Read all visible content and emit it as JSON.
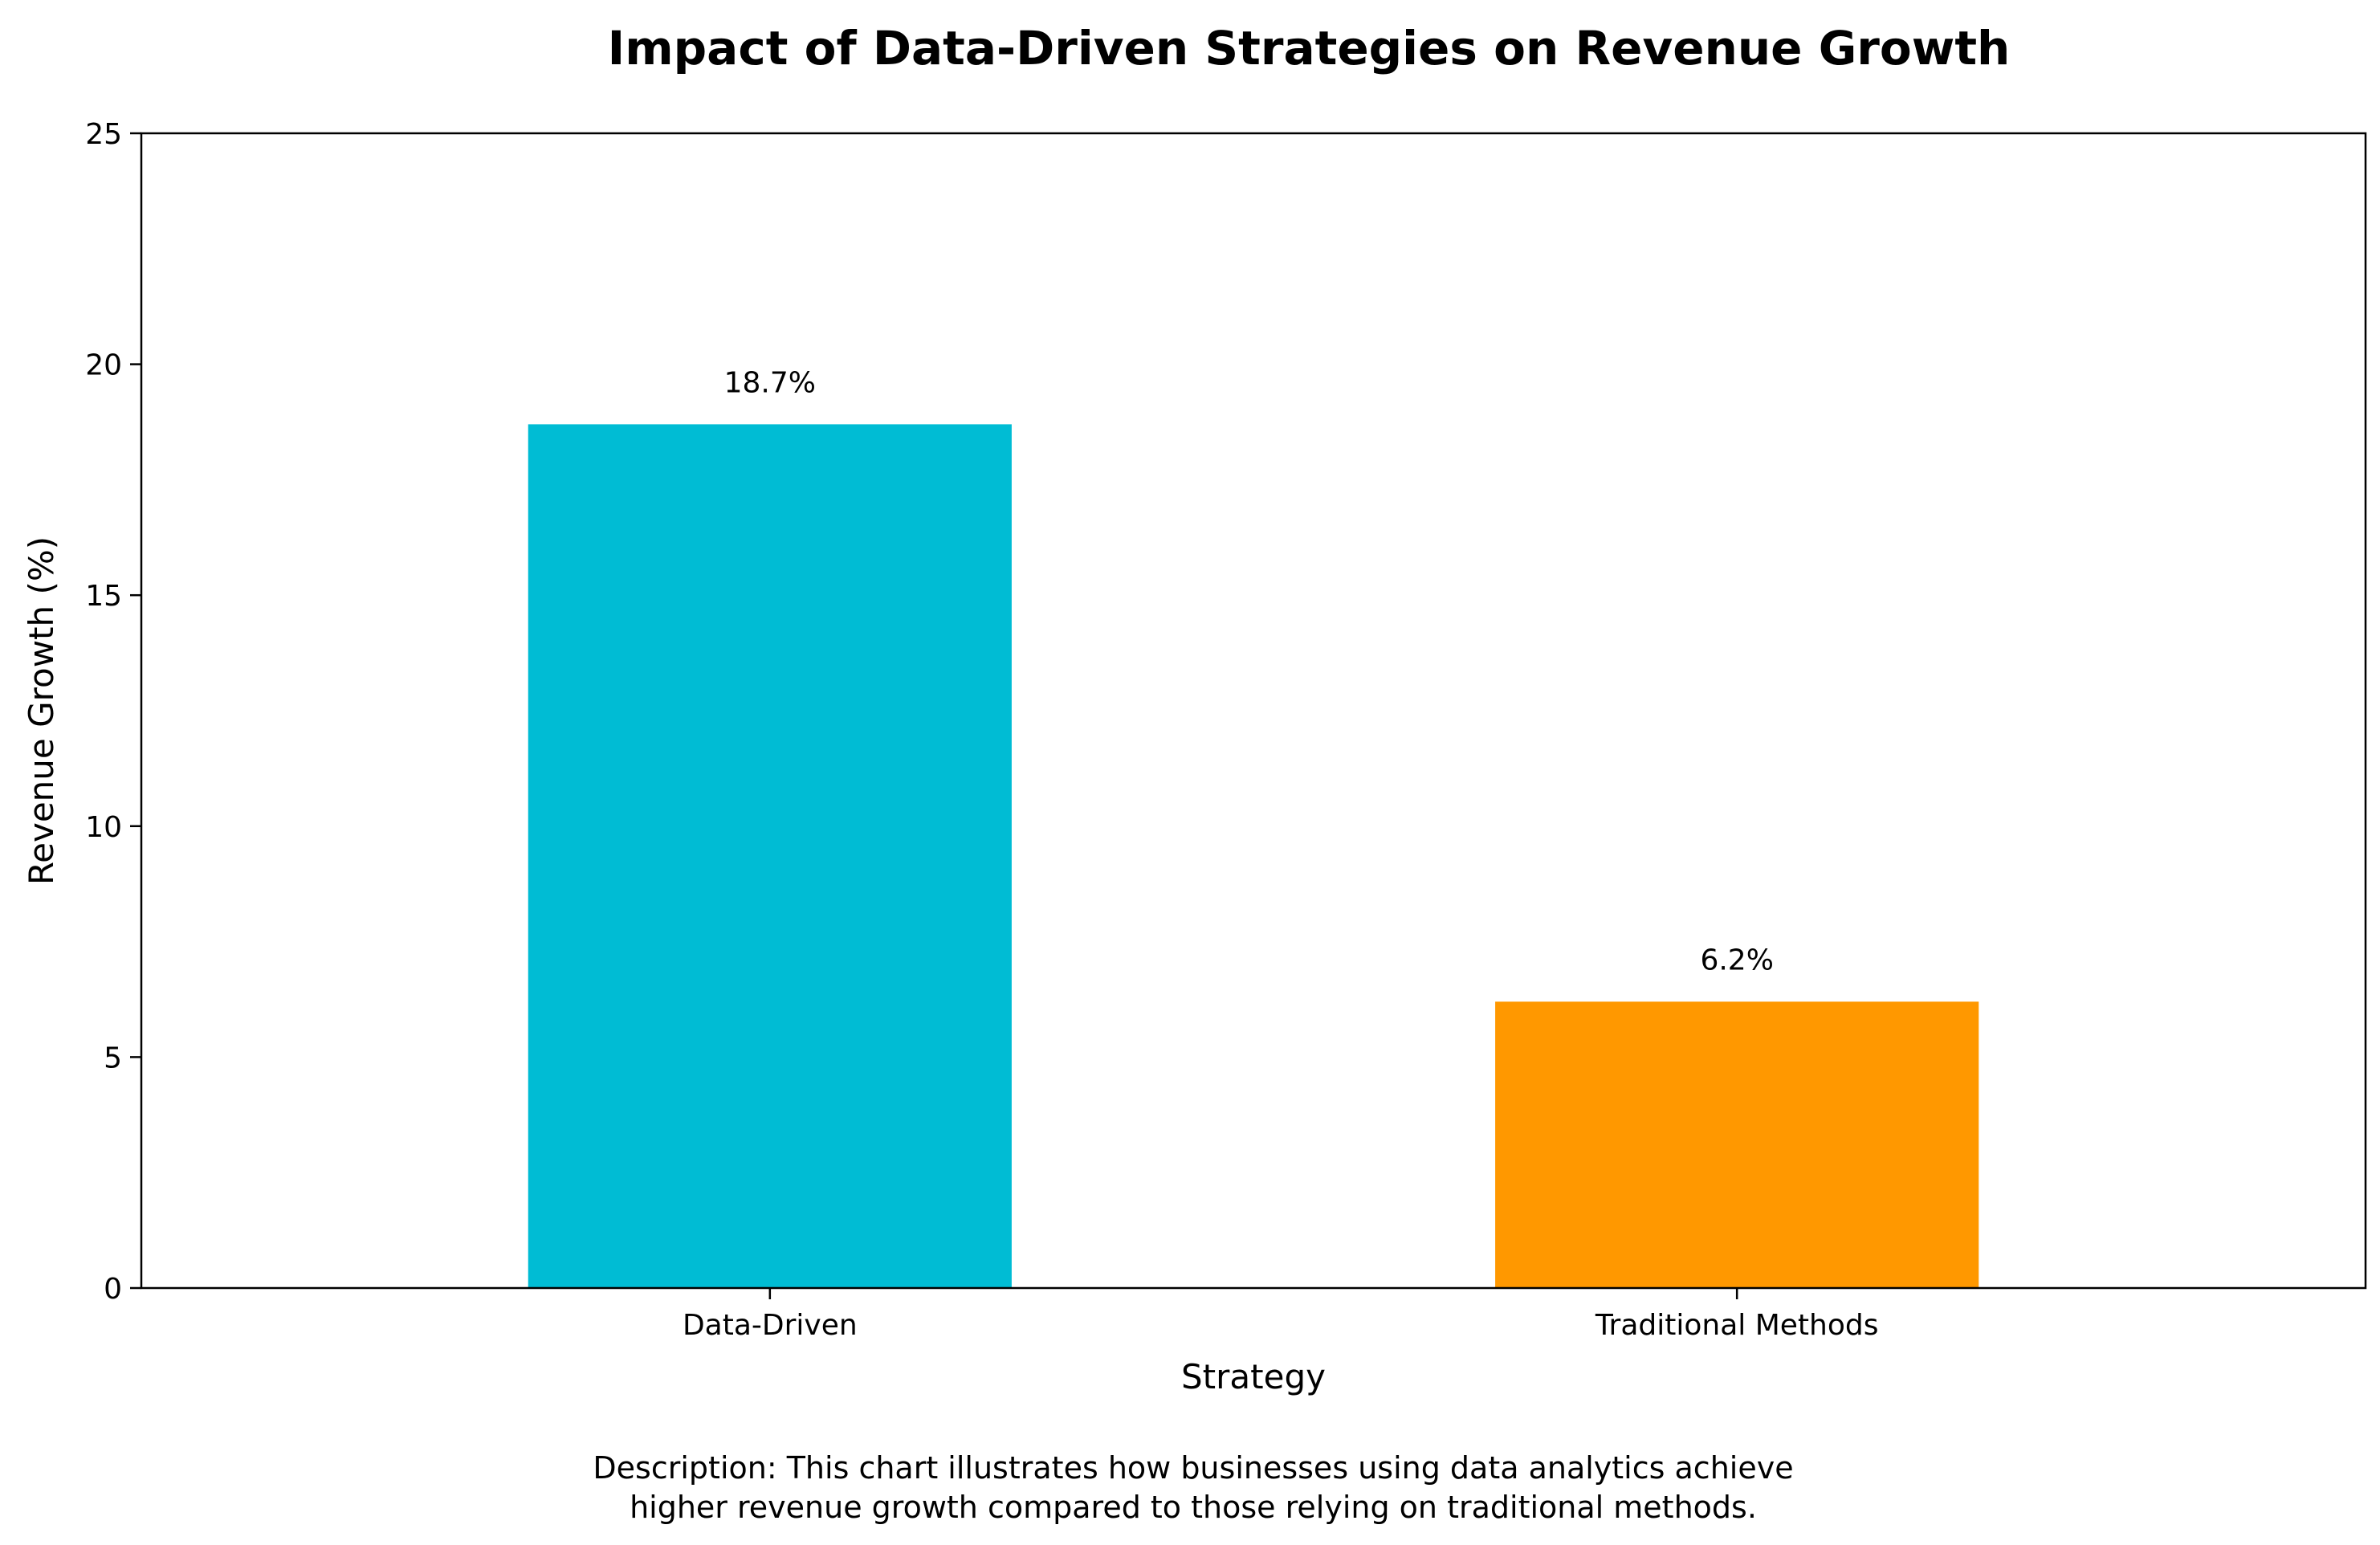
{
  "chart_data": {
    "type": "bar",
    "title": "Impact of Data-Driven Strategies on Revenue Growth",
    "xlabel": "Strategy",
    "ylabel": "Revenue Growth (%)",
    "categories": [
      "Data-Driven",
      "Traditional Methods"
    ],
    "values": [
      18.7,
      6.2
    ],
    "value_labels": [
      "18.7%",
      "6.2%"
    ],
    "colors": [
      "#00BCD4",
      "#FF9800"
    ],
    "ylim": [
      0,
      25
    ],
    "yticks": [
      0,
      5,
      10,
      15,
      20,
      25
    ],
    "ytick_labels": [
      "0",
      "5",
      "10",
      "15",
      "20",
      "25"
    ],
    "grid": false,
    "legend": "none"
  },
  "description": {
    "line1": "Description: This chart illustrates how businesses using data analytics achieve",
    "line2": "higher revenue growth compared to those relying on traditional methods."
  }
}
